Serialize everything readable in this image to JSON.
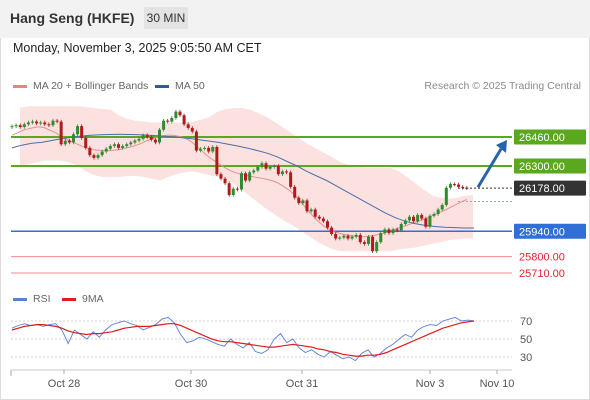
{
  "header": {
    "title": "Hang Seng (HKFE)",
    "period": "30 MIN",
    "datetime": "Monday, November 3, 2025 9:05:50 AM CET"
  },
  "legend": {
    "bollinger": "MA 20 + Bollinger Bands",
    "bollinger_color": "#f08080",
    "ma50": "MA 50",
    "ma50_color": "#2e5a99",
    "credit": "Research © 2025 Trading Central"
  },
  "rsi_legend": {
    "rsi": "RSI",
    "rsi_color": "#5b7fd6",
    "ma9": "9MA",
    "ma9_color": "#e01c1c"
  },
  "colors": {
    "up_candle": "#2e8b2e",
    "down_candle": "#b01a1a",
    "resistance": "#5aa81d",
    "support": "#2f6fd6",
    "extra_support": "#f08a8a",
    "current_price": "#333333",
    "arrow": "#2b63a8",
    "band_fill": "#fbdcdc"
  },
  "chart_data": {
    "type": "candlestick",
    "instrument": "Hang Seng (HKFE)",
    "timeframe": "30 MIN",
    "x_tick_labels": [
      "Oct 28",
      "Oct 30",
      "Oct 31",
      "Nov 3",
      "Nov 10"
    ],
    "current_price": 26178.0,
    "current_price_label": "26178.00",
    "levels": [
      {
        "value": 26460.0,
        "label": "26460.00",
        "kind": "resistance"
      },
      {
        "value": 26300.0,
        "label": "26300.00",
        "kind": "resistance"
      },
      {
        "value": 25940.0,
        "label": "25940.00",
        "kind": "support"
      },
      {
        "value": 25800.0,
        "label": "25800.00",
        "kind": "extra_support"
      },
      {
        "value": 25710.0,
        "label": "25710.00",
        "kind": "extra_support"
      }
    ],
    "scenario": "bullish",
    "close": [
      26520,
      26525,
      26515,
      26530,
      26540,
      26545,
      26535,
      26540,
      26530,
      26525,
      26550,
      26545,
      26420,
      26440,
      26430,
      26475,
      26520,
      26455,
      26400,
      26360,
      26345,
      26360,
      26380,
      26395,
      26410,
      26420,
      26400,
      26410,
      26420,
      26430,
      26440,
      26450,
      26470,
      26460,
      26445,
      26430,
      26500,
      26550,
      26545,
      26565,
      26600,
      26580,
      26530,
      26510,
      26490,
      26385,
      26395,
      26400,
      26380,
      26405,
      26255,
      26230,
      26205,
      26140,
      26175,
      26170,
      26260,
      26220,
      26265,
      26275,
      26295,
      26315,
      26285,
      26295,
      26300,
      26255,
      26270,
      26265,
      26185,
      26125,
      26095,
      26110,
      26050,
      26060,
      26020,
      26010,
      25995,
      25960,
      25925,
      25900,
      25905,
      25915,
      25900,
      25910,
      25920,
      25880,
      25870,
      25910,
      25830,
      25880,
      25930,
      25950,
      25930,
      25950,
      25945,
      25980,
      26000,
      26020,
      25995,
      26030,
      26010,
      25965,
      26025,
      26035,
      26060,
      26085,
      26180,
      26200,
      26198,
      26185,
      26180,
      26178
    ],
    "ma20": [
      26470,
      26480,
      26490,
      26500,
      26505,
      26510,
      26515,
      26515,
      26510,
      26500,
      26490,
      26480,
      26460,
      26450,
      26440,
      26430,
      26420,
      26410,
      26400,
      26395,
      26390,
      26388,
      26385,
      26385,
      26385,
      26388,
      26390,
      26395,
      26400,
      26405,
      26412,
      26420,
      26430,
      26440,
      26448,
      26455,
      26462,
      26468,
      26470,
      26470,
      26467,
      26462,
      26455,
      26445,
      26430,
      26410,
      26390,
      26370,
      26350,
      26335,
      26320,
      26305,
      26290,
      26278,
      26268,
      26260,
      26255,
      26250,
      26245,
      26240,
      26236,
      26232,
      26228,
      26222,
      26215,
      26205,
      26192,
      26177,
      26160,
      26140,
      26115,
      26088,
      26060,
      26035,
      26010,
      25990,
      25970,
      25955,
      25942,
      25935,
      25928,
      25922,
      25918,
      25915,
      25912,
      25910,
      25910,
      25912,
      25915,
      25920,
      25925,
      25932,
      25940,
      25948,
      25955,
      25962,
      25970,
      25978,
      25986,
      25994,
      26002,
      26010,
      26020,
      26030,
      26040,
      26050,
      26060,
      26072,
      26083,
      26095,
      26105,
      26115
    ],
    "ma20_note": "approximate readings of the MA 20 curve",
    "bb_upper_sampled": [
      26620,
      26630,
      26630,
      26630,
      26630,
      26630,
      26630,
      26630,
      26625,
      26620,
      26615,
      26610,
      26580,
      26560,
      26550,
      26545,
      26540,
      26540,
      26540,
      26540,
      26540,
      26545,
      26555,
      26570,
      26600,
      26615,
      26620,
      26620,
      26610,
      26590,
      26570,
      26540,
      26510,
      26480,
      26450,
      26420,
      26395,
      26370,
      26345,
      26320,
      26305,
      26295,
      26290,
      26290,
      26290,
      26290,
      26270,
      26240,
      26205,
      26170,
      26140,
      26125,
      26120,
      26125,
      26135,
      26140
    ],
    "bb_lower_sampled": [
      26300,
      26310,
      26320,
      26330,
      26330,
      26330,
      26320,
      26300,
      26270,
      26250,
      26240,
      26240,
      26240,
      26245,
      26245,
      26240,
      26230,
      26220,
      26240,
      26255,
      26265,
      26270,
      26260,
      26250,
      26240,
      26225,
      26200,
      26170,
      26130,
      26095,
      26060,
      26030,
      26000,
      25975,
      25945,
      25915,
      25885,
      25860,
      25840,
      25830,
      25830,
      25830,
      25830,
      25830,
      25830,
      25830,
      25840,
      25845,
      25850,
      25860,
      25870,
      25880,
      25890,
      25895,
      25900,
      25900
    ],
    "ma50": [
      26400,
      26415,
      26425,
      26430,
      26440,
      26450,
      26458,
      26465,
      26470,
      26472,
      26474,
      26475,
      26474,
      26472,
      26470,
      26466,
      26462,
      26458,
      26452,
      26445,
      26438,
      26430,
      26420,
      26410,
      26398,
      26385,
      26370,
      26350,
      26325,
      26300,
      26270,
      26245,
      26220,
      26190,
      26160,
      26130,
      26100,
      26070,
      26040,
      26015,
      25995,
      25982,
      25972,
      25966,
      25962,
      25960,
      25958,
      25958
    ],
    "rsi": {
      "y_ticks": [
        70,
        50,
        30
      ],
      "rsi_values": [
        62,
        65,
        67,
        65,
        66,
        64,
        66,
        67,
        60,
        45,
        60,
        55,
        50,
        58,
        52,
        60,
        66,
        68,
        70,
        67,
        65,
        60,
        63,
        66,
        72,
        74,
        68,
        55,
        46,
        48,
        52,
        50,
        47,
        44,
        42,
        50,
        44,
        40,
        46,
        36,
        34,
        38,
        50,
        56,
        46,
        50,
        40,
        35,
        38,
        33,
        30,
        36,
        32,
        28,
        30,
        26,
        34,
        38,
        30,
        34,
        40,
        44,
        50,
        55,
        52,
        60,
        64,
        66,
        65,
        70,
        72,
        74,
        70,
        71,
        70
      ],
      "ma9_values": [
        60,
        62,
        64,
        65,
        66,
        66,
        65,
        64,
        62,
        59,
        57,
        56,
        55,
        56,
        56,
        57,
        58,
        60,
        62,
        63,
        64,
        64,
        64,
        65,
        66,
        67,
        67,
        65,
        62,
        59,
        56,
        53,
        50,
        48,
        47,
        47,
        46,
        45,
        44,
        43,
        42,
        41,
        41,
        42,
        43,
        44,
        43,
        42,
        41,
        39,
        38,
        36,
        35,
        33,
        32,
        31,
        31,
        32,
        32,
        33,
        35,
        38,
        41,
        44,
        47,
        50,
        53,
        56,
        59,
        62,
        64,
        66,
        68,
        69,
        70
      ]
    }
  }
}
